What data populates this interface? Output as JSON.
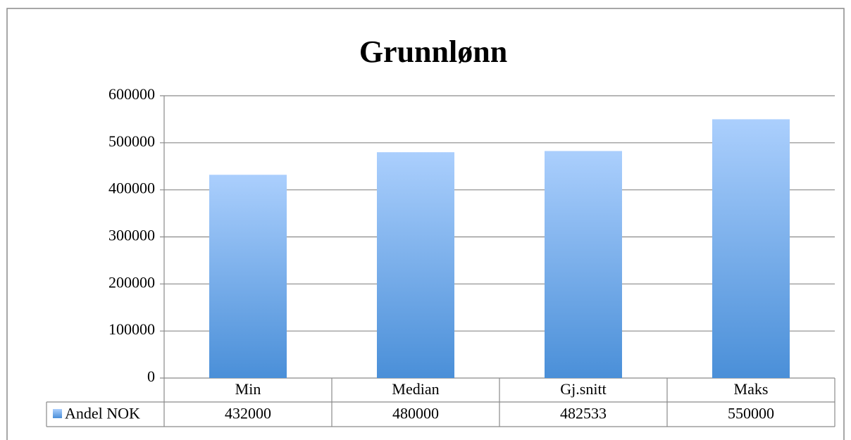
{
  "chart_data": {
    "type": "bar",
    "title": "Grunnlønn",
    "categories": [
      "Min",
      "Median",
      "Gj.snitt",
      "Maks"
    ],
    "series": [
      {
        "name": "Andel NOK",
        "color": "#4a8fd8",
        "values": [
          432000,
          480000,
          482533,
          550000
        ]
      }
    ],
    "ylim": [
      0,
      600000
    ],
    "yticks": [
      0,
      100000,
      200000,
      300000,
      400000,
      500000,
      600000
    ],
    "grid": true
  }
}
